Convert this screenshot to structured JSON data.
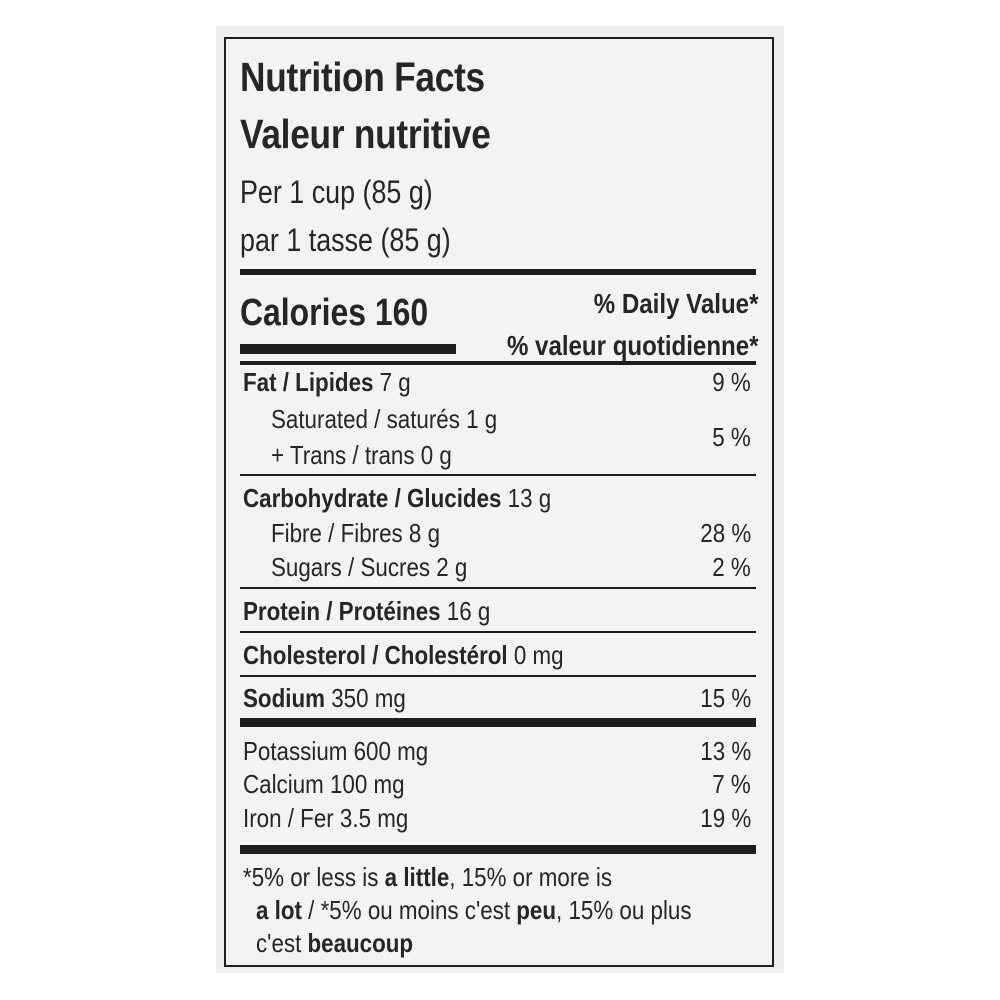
{
  "label": {
    "title_en": "Nutrition Facts",
    "title_fr": "Valeur nutritive",
    "serving_en": "Per 1 cup (85 g)",
    "serving_fr": "par 1 tasse (85 g)",
    "calories": "Calories 160",
    "dv_en": "% Daily Value*",
    "dv_fr": "% valeur quotidienne*"
  },
  "nutrients": {
    "fat": {
      "name": "Fat / Lipides",
      "amount": " 7 g",
      "dv": "9 %"
    },
    "saturated": {
      "text": "Saturated / saturés 1 g"
    },
    "trans": {
      "text": "+ Trans / trans 0 g"
    },
    "sat_trans_dv": "5 %",
    "carb": {
      "name": "Carbohydrate / Glucides",
      "amount": " 13 g"
    },
    "fibre": {
      "text": "Fibre / Fibres 8 g",
      "dv": "28 %"
    },
    "sugars": {
      "text": "Sugars / Sucres 2 g",
      "dv": "2 %"
    },
    "protein": {
      "name": "Protein / Protéines",
      "amount": " 16 g"
    },
    "cholesterol": {
      "name": "Cholesterol / Cholestérol",
      "amount": " 0 mg"
    },
    "sodium": {
      "name": "Sodium",
      "amount": " 350 mg",
      "dv": "15 %"
    },
    "potassium": {
      "text": "Potassium 600 mg",
      "dv": "13 %"
    },
    "calcium": {
      "text": "Calcium 100 mg",
      "dv": "7 %"
    },
    "iron": {
      "text": "Iron / Fer 3.5 mg",
      "dv": "19 %"
    }
  },
  "footnote": {
    "l1_a": "*5% or less is ",
    "l1_b": "a little",
    "l1_c": ", 15% or more is",
    "l2_a": "a lot",
    "l2_b": " / *5% ou moins c'est ",
    "l2_c": "peu",
    "l2_d": ", 15% ou plus",
    "l3_a": "c'est ",
    "l3_b": "beaucoup"
  }
}
